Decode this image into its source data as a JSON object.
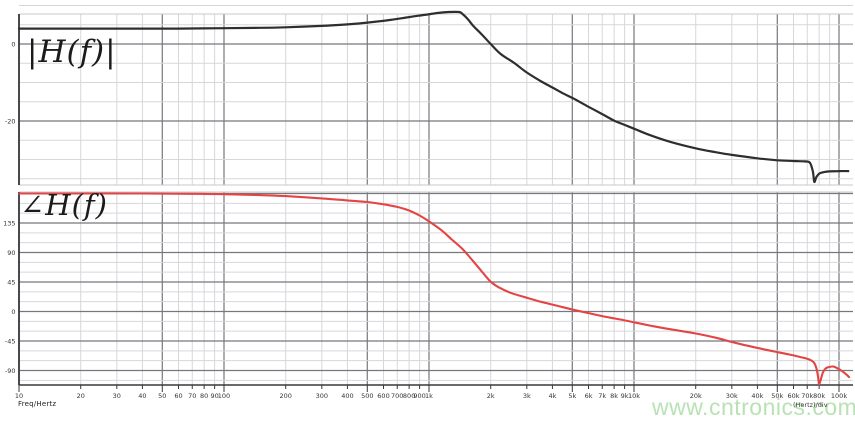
{
  "theme": {
    "background": "#ffffff",
    "grid_minor": "#d7d7db",
    "grid_major": "#77777d",
    "panel_border": "#c9c9cd",
    "axis": "#38383c",
    "tick_text": "#333333",
    "magnitude_color": "#2e2e2e",
    "phase_color": "#e34545",
    "watermark_color": "#b9e2b4"
  },
  "watermark": {
    "text": "www.cntronics.com"
  },
  "x_axis": {
    "label": "Freq/Hertz",
    "note": "(Hertz)/div",
    "scale": "log",
    "min": 10,
    "max": 112000,
    "ticks": [
      {
        "f": 10,
        "label": "10",
        "major": true
      },
      {
        "f": 20,
        "label": "20",
        "major": false
      },
      {
        "f": 30,
        "label": "30",
        "major": false
      },
      {
        "f": 40,
        "label": "40",
        "major": false
      },
      {
        "f": 50,
        "label": "50",
        "major": true
      },
      {
        "f": 60,
        "label": "60",
        "major": false
      },
      {
        "f": 70,
        "label": "70",
        "major": false
      },
      {
        "f": 80,
        "label": "80",
        "major": false
      },
      {
        "f": 90,
        "label": "90",
        "major": false
      },
      {
        "f": 100,
        "label": "100",
        "major": true
      },
      {
        "f": 200,
        "label": "200",
        "major": false
      },
      {
        "f": 300,
        "label": "300",
        "major": false
      },
      {
        "f": 400,
        "label": "400",
        "major": false
      },
      {
        "f": 500,
        "label": "500",
        "major": true
      },
      {
        "f": 600,
        "label": "600",
        "major": false
      },
      {
        "f": 700,
        "label": "700",
        "major": false
      },
      {
        "f": 800,
        "label": "800",
        "major": false
      },
      {
        "f": 900,
        "label": "900",
        "major": false
      },
      {
        "f": 1000,
        "label": "1k",
        "major": true
      },
      {
        "f": 2000,
        "label": "2k",
        "major": false
      },
      {
        "f": 3000,
        "label": "3k",
        "major": false
      },
      {
        "f": 4000,
        "label": "4k",
        "major": false
      },
      {
        "f": 5000,
        "label": "5k",
        "major": true
      },
      {
        "f": 6000,
        "label": "6k",
        "major": false
      },
      {
        "f": 7000,
        "label": "7k",
        "major": false
      },
      {
        "f": 8000,
        "label": "8k",
        "major": false
      },
      {
        "f": 9000,
        "label": "9k",
        "major": false
      },
      {
        "f": 10000,
        "label": "10k",
        "major": true
      },
      {
        "f": 20000,
        "label": "20k",
        "major": false
      },
      {
        "f": 30000,
        "label": "30k",
        "major": false
      },
      {
        "f": 40000,
        "label": "40k",
        "major": false
      },
      {
        "f": 50000,
        "label": "50k",
        "major": true
      },
      {
        "f": 60000,
        "label": "60k",
        "major": false
      },
      {
        "f": 70000,
        "label": "70k",
        "major": false
      },
      {
        "f": 80000,
        "label": "80k",
        "major": false
      },
      {
        "f": 100000,
        "label": "100k",
        "major": true
      }
    ]
  },
  "chart_data": [
    {
      "type": "line",
      "name": "magnitude",
      "title": "|H(f)|",
      "y_unit": "dB",
      "y_range": [
        -36.6,
        11.8
      ],
      "y_minor_step": 5,
      "y_major_step": 20,
      "y_tick_labels": [
        {
          "v": 0,
          "t": "0"
        },
        {
          "v": -20,
          "t": "-20"
        }
      ],
      "grid": true,
      "series": [
        {
          "name": "|H(f)| (dB)",
          "points": [
            [
              10,
              4.0
            ],
            [
              15,
              4.0
            ],
            [
              25,
              4.0
            ],
            [
              40,
              4.0
            ],
            [
              60,
              4.0
            ],
            [
              100,
              4.1
            ],
            [
              150,
              4.2
            ],
            [
              200,
              4.35
            ],
            [
              300,
              4.7
            ],
            [
              400,
              5.1
            ],
            [
              500,
              5.55
            ],
            [
              650,
              6.25
            ],
            [
              800,
              7.0
            ],
            [
              950,
              7.55
            ],
            [
              1100,
              8.05
            ],
            [
              1250,
              8.3
            ],
            [
              1400,
              8.3
            ],
            [
              1450,
              7.9
            ],
            [
              1550,
              6.4
            ],
            [
              1650,
              4.6
            ],
            [
              1800,
              2.6
            ],
            [
              2000,
              0.0
            ],
            [
              2250,
              -2.7
            ],
            [
              2600,
              -4.9
            ],
            [
              3000,
              -7.4
            ],
            [
              3500,
              -9.6
            ],
            [
              4000,
              -11.3
            ],
            [
              4500,
              -12.8
            ],
            [
              5000,
              -14.0
            ],
            [
              6000,
              -16.3
            ],
            [
              7000,
              -18.2
            ],
            [
              8000,
              -19.9
            ],
            [
              9000,
              -21.0
            ],
            [
              10000,
              -22.0
            ],
            [
              12000,
              -23.7
            ],
            [
              15000,
              -25.4
            ],
            [
              20000,
              -27.1
            ],
            [
              25000,
              -28.1
            ],
            [
              30000,
              -28.8
            ],
            [
              40000,
              -29.7
            ],
            [
              50000,
              -30.2
            ],
            [
              60000,
              -30.4
            ],
            [
              68000,
              -30.5
            ],
            [
              72000,
              -30.8
            ],
            [
              74500,
              -33.0
            ],
            [
              75800,
              -35.8
            ],
            [
              77500,
              -34.6
            ],
            [
              80000,
              -33.7
            ],
            [
              84000,
              -33.3
            ],
            [
              90000,
              -33.1
            ],
            [
              100000,
              -33.0
            ],
            [
              111000,
              -33.0
            ]
          ]
        }
      ]
    },
    {
      "type": "line",
      "name": "phase",
      "title": "∠H(f)",
      "y_unit": "degrees",
      "y_range": [
        -112.3,
        182.2
      ],
      "y_minor_step": 15,
      "y_major_step": 45,
      "y_tick_labels": [
        {
          "v": 135,
          "t": "135"
        },
        {
          "v": 90,
          "t": "90"
        },
        {
          "v": 45,
          "t": "45"
        },
        {
          "v": 0,
          "t": "0"
        },
        {
          "v": -45,
          "t": "-45"
        },
        {
          "v": -90,
          "t": "-90"
        }
      ],
      "grid": true,
      "series": [
        {
          "name": "∠H(f) (deg)",
          "points": [
            [
              10,
              180
            ],
            [
              20,
              180
            ],
            [
              40,
              180
            ],
            [
              70,
              179.5
            ],
            [
              100,
              179
            ],
            [
              150,
              177.5
            ],
            [
              200,
              176
            ],
            [
              300,
              172.5
            ],
            [
              400,
              169.5
            ],
            [
              500,
              167
            ],
            [
              600,
              163.5
            ],
            [
              700,
              159.5
            ],
            [
              800,
              154
            ],
            [
              900,
              146.5
            ],
            [
              1000,
              137.5
            ],
            [
              1150,
              124
            ],
            [
              1300,
              109
            ],
            [
              1450,
              96
            ],
            [
              1600,
              81
            ],
            [
              1800,
              62
            ],
            [
              2000,
              45.5
            ],
            [
              2200,
              36.5
            ],
            [
              2500,
              28.5
            ],
            [
              3000,
              21
            ],
            [
              3500,
              15
            ],
            [
              4000,
              10.5
            ],
            [
              4500,
              6.5
            ],
            [
              5000,
              3
            ],
            [
              6000,
              -2.5
            ],
            [
              7000,
              -7
            ],
            [
              8000,
              -10.5
            ],
            [
              9000,
              -13.5
            ],
            [
              10000,
              -16.5
            ],
            [
              12000,
              -21.5
            ],
            [
              15000,
              -27
            ],
            [
              20000,
              -33.5
            ],
            [
              25000,
              -40
            ],
            [
              30000,
              -46.5
            ],
            [
              35000,
              -51.5
            ],
            [
              40000,
              -55.5
            ],
            [
              45000,
              -59
            ],
            [
              50000,
              -62
            ],
            [
              55000,
              -64.5
            ],
            [
              60000,
              -67
            ],
            [
              65000,
              -69.5
            ],
            [
              70000,
              -72
            ],
            [
              73000,
              -74.5
            ],
            [
              75500,
              -78
            ],
            [
              77500,
              -86
            ],
            [
              79000,
              -99
            ],
            [
              79600,
              -108.5
            ],
            [
              80000,
              -111.3
            ],
            [
              80600,
              -108.5
            ],
            [
              81500,
              -104
            ],
            [
              83500,
              -93
            ],
            [
              86000,
              -87
            ],
            [
              90000,
              -84.5
            ],
            [
              94000,
              -84
            ],
            [
              98000,
              -86.5
            ],
            [
              103000,
              -90.5
            ],
            [
              108000,
              -95.5
            ],
            [
              112000,
              -100
            ]
          ]
        }
      ]
    }
  ]
}
